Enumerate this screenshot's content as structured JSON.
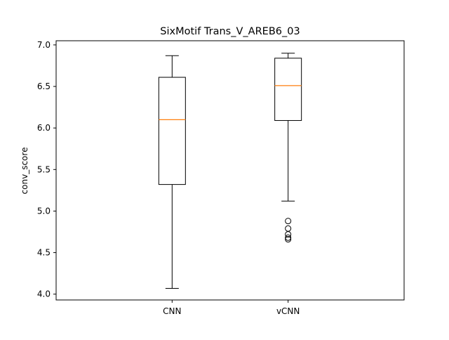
{
  "chart_data": {
    "type": "box",
    "title": "SixMotif Trans_V_AREB6_03",
    "xlabel": "",
    "ylabel": "conv_score",
    "ylim": [
      3.93,
      7.05
    ],
    "yticks": [
      "4.0",
      "4.5",
      "5.0",
      "5.5",
      "6.0",
      "6.5",
      "7.0"
    ],
    "grid": false,
    "categories": [
      "CNN",
      "vCNN"
    ],
    "boxes": [
      {
        "category": "CNN",
        "whisker_low": 4.07,
        "q1": 5.32,
        "median": 6.1,
        "q3": 6.61,
        "whisker_high": 6.87,
        "outliers": []
      },
      {
        "category": "vCNN",
        "whisker_low": 5.12,
        "q1": 6.09,
        "median": 6.51,
        "q3": 6.84,
        "whisker_high": 6.9,
        "outliers": [
          4.88,
          4.79,
          4.72,
          4.68,
          4.66
        ]
      }
    ],
    "colors": {
      "box": "#000000",
      "median": "#ff7f0e",
      "outlier": "#000000"
    }
  }
}
